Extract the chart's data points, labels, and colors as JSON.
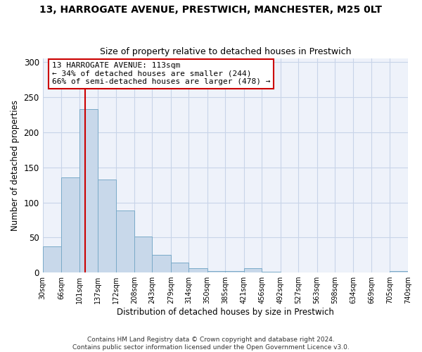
{
  "title": "13, HARROGATE AVENUE, PRESTWICH, MANCHESTER, M25 0LT",
  "subtitle": "Size of property relative to detached houses in Prestwich",
  "xlabel": "Distribution of detached houses by size in Prestwich",
  "ylabel": "Number of detached properties",
  "footer_lines": [
    "Contains HM Land Registry data © Crown copyright and database right 2024.",
    "Contains public sector information licensed under the Open Government Licence v3.0."
  ],
  "bin_labels": [
    "30sqm",
    "66sqm",
    "101sqm",
    "137sqm",
    "172sqm",
    "208sqm",
    "243sqm",
    "279sqm",
    "314sqm",
    "350sqm",
    "385sqm",
    "421sqm",
    "456sqm",
    "492sqm",
    "527sqm",
    "563sqm",
    "598sqm",
    "634sqm",
    "669sqm",
    "705sqm",
    "740sqm"
  ],
  "bar_heights": [
    37,
    136,
    233,
    133,
    88,
    51,
    25,
    14,
    6,
    2,
    2,
    6,
    1,
    0,
    0,
    0,
    0,
    0,
    0,
    2
  ],
  "bar_color": "#c8d8ea",
  "bar_edge_color": "#7aaac8",
  "property_line_x": 113,
  "bin_edges": [
    30,
    66,
    101,
    137,
    172,
    208,
    243,
    279,
    314,
    350,
    385,
    421,
    456,
    492,
    527,
    563,
    598,
    634,
    669,
    705,
    740
  ],
  "annotation_box_text": "13 HARROGATE AVENUE: 113sqm\n← 34% of detached houses are smaller (244)\n66% of semi-detached houses are larger (478) →",
  "annotation_box_color": "#ffffff",
  "annotation_box_edge_color": "#cc0000",
  "vline_color": "#cc0000",
  "ylim": [
    0,
    305
  ],
  "yticks": [
    0,
    50,
    100,
    150,
    200,
    250,
    300
  ],
  "grid_color": "#c8d4e8",
  "bg_color": "#ffffff",
  "plot_bg_color": "#eef2fa"
}
